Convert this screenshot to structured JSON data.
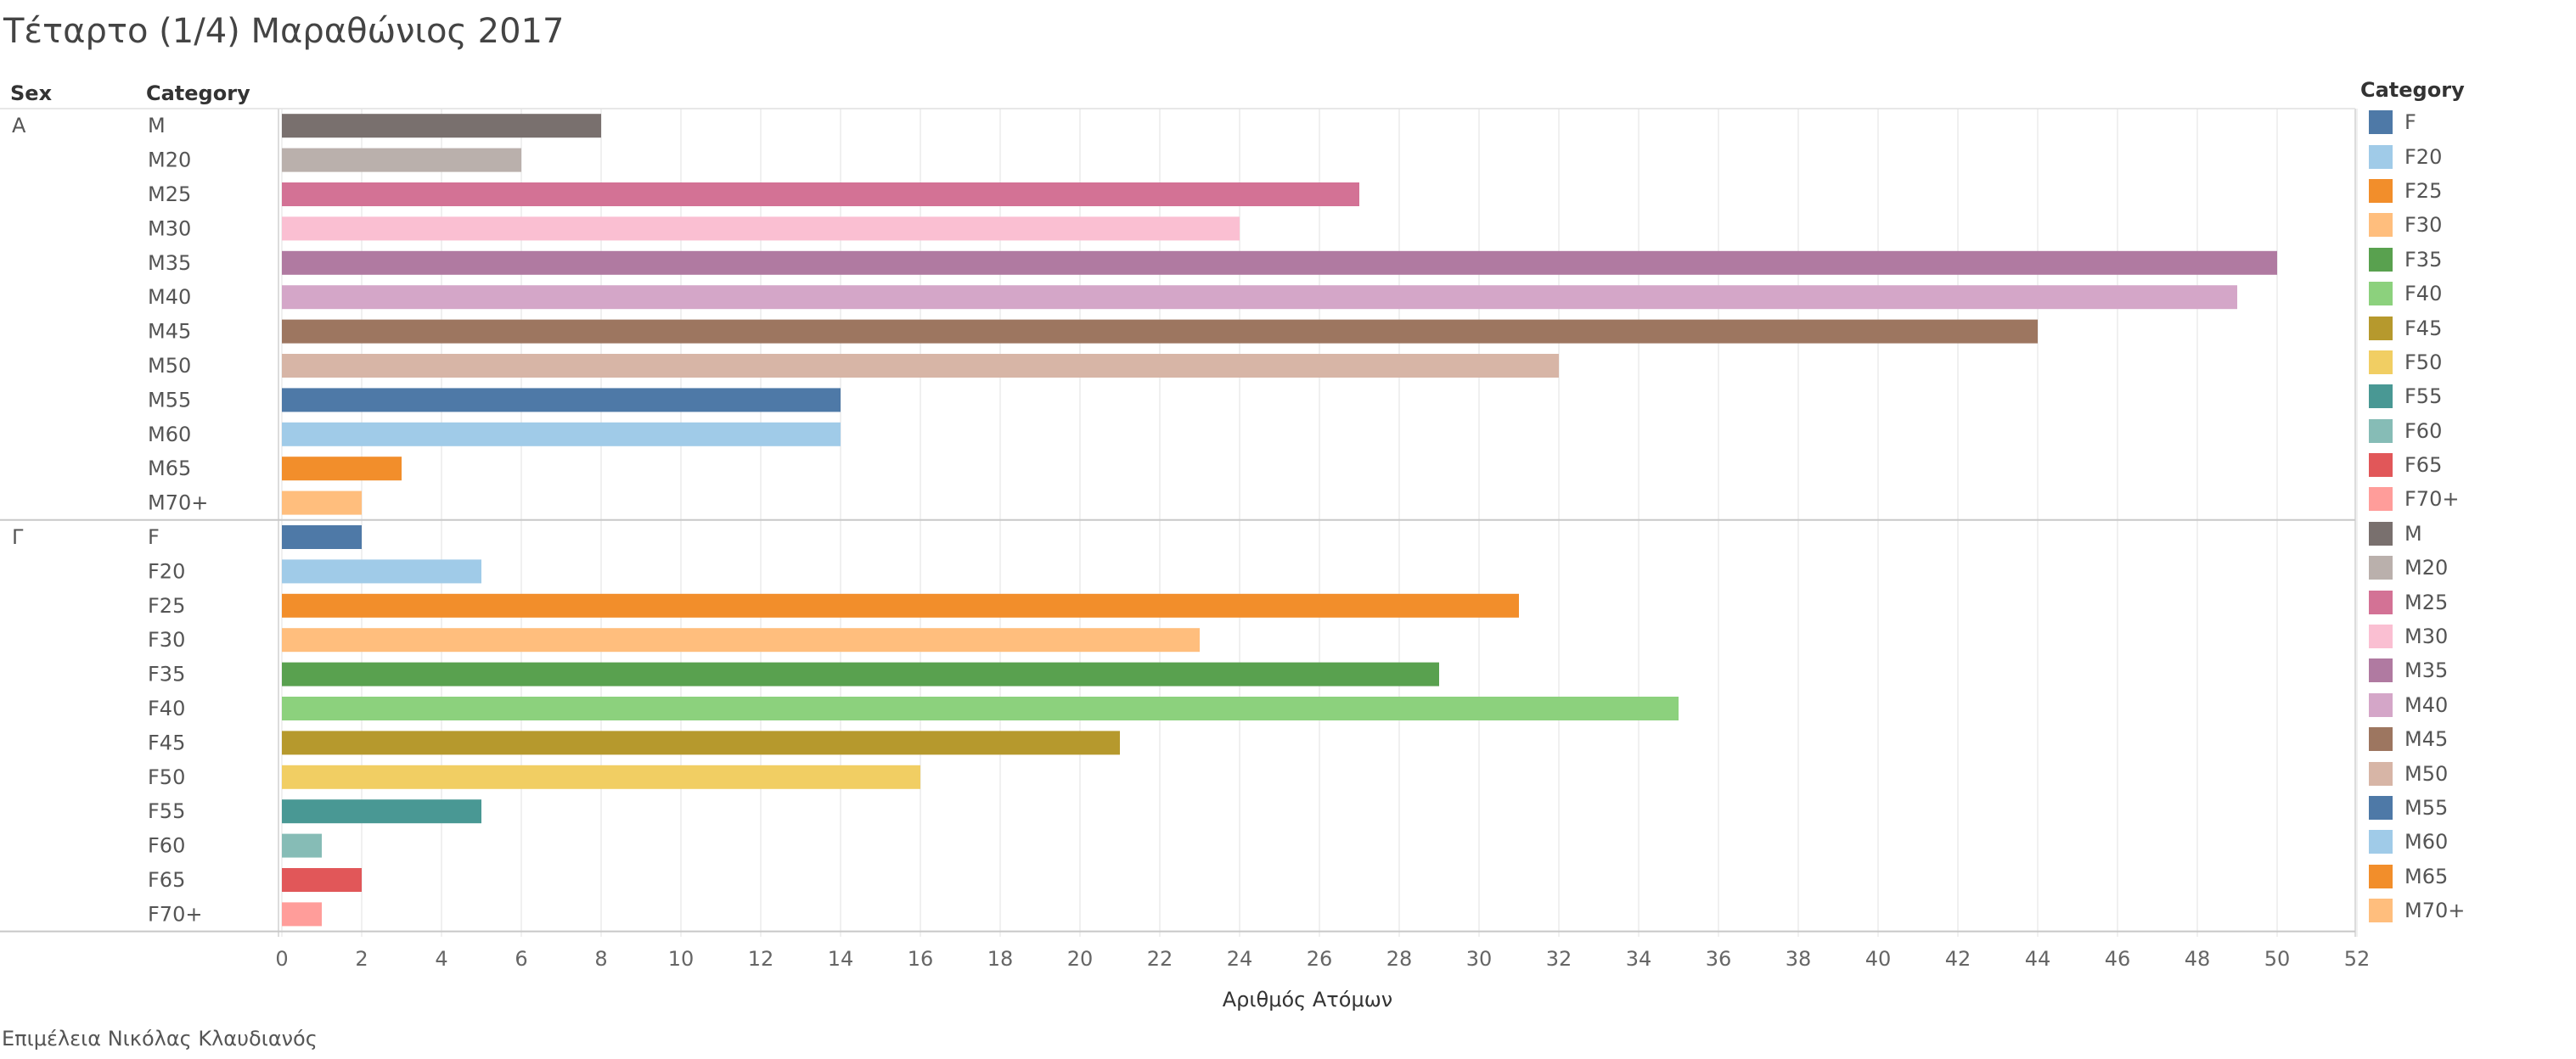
{
  "title": "Τέταρτο (1/4) Μαραθώνιος 2017",
  "credit": "Επιμέλεια Νικόλας Κλαυδιανός",
  "headers": {
    "sex": "Sex",
    "category": "Category"
  },
  "legend": {
    "title": "Category",
    "items": [
      {
        "label": "F",
        "color": "#4e79a7"
      },
      {
        "label": "F20",
        "color": "#a0cbe8"
      },
      {
        "label": "F25",
        "color": "#f28e2b"
      },
      {
        "label": "F30",
        "color": "#ffbe7d"
      },
      {
        "label": "F35",
        "color": "#59a14f"
      },
      {
        "label": "F40",
        "color": "#8cd17d"
      },
      {
        "label": "F45",
        "color": "#b6992d"
      },
      {
        "label": "F50",
        "color": "#f1ce63"
      },
      {
        "label": "F55",
        "color": "#499894"
      },
      {
        "label": "F60",
        "color": "#86bcb6"
      },
      {
        "label": "F65",
        "color": "#e15759"
      },
      {
        "label": "F70+",
        "color": "#ff9d9a"
      },
      {
        "label": "M",
        "color": "#79706e"
      },
      {
        "label": "M20",
        "color": "#bab0ac"
      },
      {
        "label": "M25",
        "color": "#d37295"
      },
      {
        "label": "M30",
        "color": "#fabfd2"
      },
      {
        "label": "M35",
        "color": "#b07aa1"
      },
      {
        "label": "M40",
        "color": "#d4a6c8"
      },
      {
        "label": "M45",
        "color": "#9d7660"
      },
      {
        "label": "M50",
        "color": "#d7b5a6"
      },
      {
        "label": "M55",
        "color": "#4e79a7"
      },
      {
        "label": "M60",
        "color": "#a0cbe8"
      },
      {
        "label": "M65",
        "color": "#f28e2b"
      },
      {
        "label": "M70+",
        "color": "#ffbe7d"
      }
    ]
  },
  "chart_data": {
    "type": "bar",
    "orientation": "horizontal",
    "xlabel": "Αριθμός Ατόμων",
    "xlim": [
      0,
      53
    ],
    "xticks": [
      0,
      2,
      4,
      6,
      8,
      10,
      12,
      14,
      16,
      18,
      20,
      22,
      24,
      26,
      28,
      30,
      32,
      34,
      36,
      38,
      40,
      42,
      44,
      46,
      48,
      50,
      52
    ],
    "grid": true,
    "groups": [
      {
        "sex": "Α",
        "rows": [
          {
            "category": "M",
            "value": 8,
            "color": "#79706e"
          },
          {
            "category": "M20",
            "value": 6,
            "color": "#bab0ac"
          },
          {
            "category": "M25",
            "value": 27,
            "color": "#d37295"
          },
          {
            "category": "M30",
            "value": 24,
            "color": "#fabfd2"
          },
          {
            "category": "M35",
            "value": 50,
            "color": "#b07aa1"
          },
          {
            "category": "M40",
            "value": 49,
            "color": "#d4a6c8"
          },
          {
            "category": "M45",
            "value": 44,
            "color": "#9d7660"
          },
          {
            "category": "M50",
            "value": 32,
            "color": "#d7b5a6"
          },
          {
            "category": "M55",
            "value": 14,
            "color": "#4e79a7"
          },
          {
            "category": "M60",
            "value": 14,
            "color": "#a0cbe8"
          },
          {
            "category": "M65",
            "value": 3,
            "color": "#f28e2b"
          },
          {
            "category": "M70+",
            "value": 2,
            "color": "#ffbe7d"
          }
        ]
      },
      {
        "sex": "Γ",
        "rows": [
          {
            "category": "F",
            "value": 2,
            "color": "#4e79a7"
          },
          {
            "category": "F20",
            "value": 5,
            "color": "#a0cbe8"
          },
          {
            "category": "F25",
            "value": 31,
            "color": "#f28e2b"
          },
          {
            "category": "F30",
            "value": 23,
            "color": "#ffbe7d"
          },
          {
            "category": "F35",
            "value": 29,
            "color": "#59a14f"
          },
          {
            "category": "F40",
            "value": 35,
            "color": "#8cd17d"
          },
          {
            "category": "F45",
            "value": 21,
            "color": "#b6992d"
          },
          {
            "category": "F50",
            "value": 16,
            "color": "#f1ce63"
          },
          {
            "category": "F55",
            "value": 5,
            "color": "#499894"
          },
          {
            "category": "F60",
            "value": 1,
            "color": "#86bcb6"
          },
          {
            "category": "F65",
            "value": 2,
            "color": "#e15759"
          },
          {
            "category": "F70+",
            "value": 1,
            "color": "#ff9d9a"
          }
        ]
      }
    ]
  }
}
